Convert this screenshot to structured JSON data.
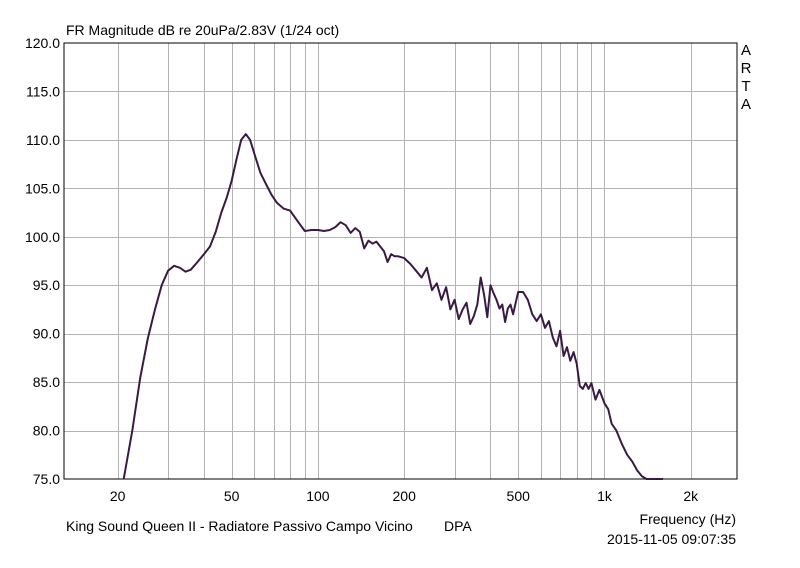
{
  "chart_data": {
    "type": "line",
    "title": "FR Magnitude dB re 20uPa/2.83V (1/24 oct)",
    "xlabel": "Frequency (Hz)",
    "ylabel": "",
    "x_scale": "log",
    "xlim": [
      13,
      2900
    ],
    "ylim": [
      75,
      120
    ],
    "y_ticks": [
      120.0,
      115.0,
      110.0,
      105.0,
      100.0,
      95.0,
      90.0,
      85.0,
      80.0,
      75.0
    ],
    "y_tick_labels": [
      "120.0",
      "115.0",
      "110.0",
      "105.0",
      "100.0",
      "95.0",
      "90.0",
      "85.0",
      "80.0",
      "75.0"
    ],
    "x_ticks": [
      20,
      50,
      100,
      200,
      500,
      1000,
      2000
    ],
    "x_tick_labels": [
      "20",
      "50",
      "100",
      "200",
      "500",
      "1k",
      "2k"
    ],
    "grid": true,
    "line_color": "#3a1a45",
    "series": [
      {
        "x": [
          21,
          22.5,
          24,
          25.5,
          27,
          28.5,
          30,
          31.5,
          33,
          34.5,
          36,
          38,
          40,
          42,
          44,
          46,
          48,
          50,
          52,
          54,
          56,
          58,
          60,
          63,
          66,
          69,
          72,
          76,
          80,
          85,
          90,
          95,
          100,
          105,
          110,
          115,
          120,
          125,
          130,
          135,
          140,
          145,
          150,
          155,
          160,
          165,
          170,
          175,
          180,
          185,
          190,
          200,
          210,
          220,
          230,
          240,
          250,
          260,
          270,
          280,
          290,
          300,
          310,
          320,
          330,
          340,
          350,
          360,
          370,
          380,
          390,
          400,
          410,
          420,
          430,
          440,
          450,
          460,
          470,
          480,
          490,
          500,
          520,
          540,
          560,
          580,
          600,
          620,
          640,
          660,
          680,
          700,
          720,
          740,
          760,
          780,
          800,
          820,
          840,
          860,
          880,
          900,
          930,
          960,
          1000,
          1030,
          1060,
          1100,
          1150,
          1200,
          1250,
          1300,
          1350,
          1400,
          1450,
          1500,
          1550,
          1600
        ],
        "y": [
          75.0,
          80.0,
          85.5,
          89.5,
          92.5,
          95.0,
          96.5,
          97.0,
          96.8,
          96.4,
          96.6,
          97.4,
          98.2,
          99.0,
          100.5,
          102.5,
          104.0,
          105.8,
          108.0,
          110.0,
          110.6,
          110.0,
          108.6,
          106.6,
          105.4,
          104.3,
          103.5,
          102.9,
          102.7,
          101.6,
          100.6,
          100.7,
          100.7,
          100.6,
          100.7,
          101.0,
          101.5,
          101.2,
          100.4,
          100.9,
          100.5,
          98.8,
          99.6,
          99.3,
          99.5,
          99.0,
          98.5,
          97.4,
          98.2,
          98.0,
          98.0,
          97.8,
          97.2,
          96.5,
          95.8,
          96.8,
          94.5,
          95.2,
          93.5,
          94.8,
          92.5,
          93.5,
          91.5,
          92.5,
          93.2,
          91.0,
          91.8,
          93.0,
          95.8,
          94.0,
          91.7,
          95.0,
          94.2,
          93.5,
          92.6,
          93.0,
          91.2,
          92.6,
          93.0,
          92.0,
          93.2,
          94.3,
          94.3,
          93.5,
          92.0,
          91.3,
          92.0,
          90.6,
          91.3,
          89.6,
          88.7,
          90.3,
          87.7,
          88.6,
          87.2,
          88.1,
          86.9,
          84.6,
          84.3,
          84.9,
          84.3,
          84.9,
          83.2,
          84.2,
          82.8,
          82.2,
          80.7,
          80.0,
          78.6,
          77.5,
          76.8,
          75.9,
          75.3,
          75.0,
          75.0,
          75.0,
          75.0,
          75.0
        ]
      }
    ]
  },
  "annotations": {
    "brand_letters": [
      "A",
      "R",
      "T",
      "A"
    ],
    "footer_description": "King Sound Queen II - Radiatore Passivo Campo Vicino",
    "footer_mic": "DPA",
    "timestamp": "2015-11-05  09:07:35"
  }
}
